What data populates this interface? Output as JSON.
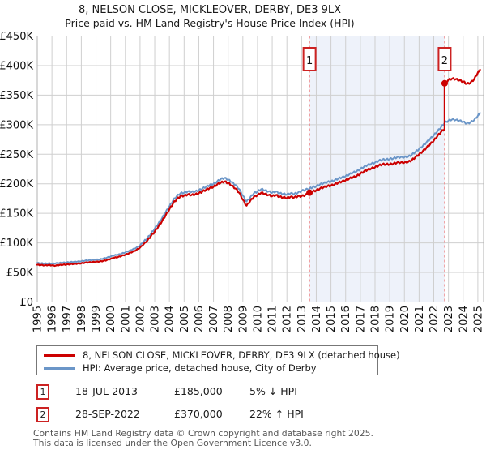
{
  "title": "8, NELSON CLOSE, MICKLEOVER, DERBY, DE3 9LX",
  "subtitle": "Price paid vs. HM Land Registry's House Price Index (HPI)",
  "chart_data": {
    "type": "line",
    "title": "8, NELSON CLOSE, MICKLEOVER, DERBY, DE3 9LX",
    "subtitle": "Price paid vs. HM Land Registry's House Price Index (HPI)",
    "grid": true,
    "legend_position": "bottom",
    "x_axis": {
      "min": 1995,
      "max": 2025,
      "tick_labels": [
        "1995",
        "1996",
        "1997",
        "1998",
        "1999",
        "2000",
        "2001",
        "2002",
        "2003",
        "2004",
        "2005",
        "2006",
        "2007",
        "2008",
        "2009",
        "2010",
        "2011",
        "2012",
        "2013",
        "2014",
        "2015",
        "2016",
        "2017",
        "2018",
        "2019",
        "2020",
        "2021",
        "2022",
        "2023",
        "2024",
        "2025"
      ]
    },
    "y_axis": {
      "min": 0,
      "max": 450000,
      "tick_step": 50000,
      "tick_labels": [
        "£0",
        "£50K",
        "£100K",
        "£150K",
        "£200K",
        "£250K",
        "£300K",
        "£350K",
        "£400K",
        "£450K"
      ]
    },
    "band_between_sales": {
      "from": 2013.54,
      "to": 2022.74,
      "color": "#eef2fa"
    },
    "sale_markers": [
      {
        "num": "1",
        "x": 2013.54,
        "value_k": 185
      },
      {
        "num": "2",
        "x": 2022.74,
        "value_k": 370
      }
    ],
    "series": [
      {
        "name": "HPI: Average price, detached house, City of Derby",
        "color": "#6b96c8",
        "width": 2,
        "points": [
          [
            1995.0,
            66
          ],
          [
            1995.25,
            65.5
          ],
          [
            1995.5,
            65
          ],
          [
            1995.75,
            65.5
          ],
          [
            1996.0,
            65
          ],
          [
            1996.25,
            65.5
          ],
          [
            1996.5,
            66
          ],
          [
            1996.75,
            66.5
          ],
          [
            1997.0,
            67
          ],
          [
            1997.25,
            67.5
          ],
          [
            1997.5,
            68
          ],
          [
            1997.75,
            68.5
          ],
          [
            1998.0,
            69
          ],
          [
            1998.25,
            70
          ],
          [
            1998.5,
            70.5
          ],
          [
            1998.75,
            71
          ],
          [
            1999.0,
            71.5
          ],
          [
            1999.25,
            72
          ],
          [
            1999.5,
            73.5
          ],
          [
            1999.75,
            75
          ],
          [
            2000.0,
            77
          ],
          [
            2000.25,
            79
          ],
          [
            2000.5,
            80
          ],
          [
            2000.75,
            82
          ],
          [
            2001.0,
            84
          ],
          [
            2001.25,
            86.5
          ],
          [
            2001.5,
            89
          ],
          [
            2001.75,
            92
          ],
          [
            2002.0,
            96
          ],
          [
            2002.25,
            102
          ],
          [
            2002.5,
            108
          ],
          [
            2002.75,
            116
          ],
          [
            2003.0,
            124
          ],
          [
            2003.25,
            133
          ],
          [
            2003.5,
            142
          ],
          [
            2003.75,
            152
          ],
          [
            2004.0,
            162
          ],
          [
            2004.25,
            172
          ],
          [
            2004.5,
            179
          ],
          [
            2004.75,
            184
          ],
          [
            2005.0,
            185
          ],
          [
            2005.25,
            187
          ],
          [
            2005.5,
            186
          ],
          [
            2005.75,
            187
          ],
          [
            2006.0,
            189
          ],
          [
            2006.25,
            192
          ],
          [
            2006.5,
            195
          ],
          [
            2006.75,
            198
          ],
          [
            2007.0,
            200
          ],
          [
            2007.25,
            204
          ],
          [
            2007.5,
            208
          ],
          [
            2007.75,
            210
          ],
          [
            2008.0,
            207
          ],
          [
            2008.25,
            203
          ],
          [
            2008.5,
            198
          ],
          [
            2008.75,
            191
          ],
          [
            2009.0,
            180
          ],
          [
            2009.25,
            170
          ],
          [
            2009.5,
            177
          ],
          [
            2009.75,
            184
          ],
          [
            2010.0,
            187
          ],
          [
            2010.25,
            191
          ],
          [
            2010.5,
            189
          ],
          [
            2010.75,
            187
          ],
          [
            2011.0,
            185
          ],
          [
            2011.25,
            187
          ],
          [
            2011.5,
            184
          ],
          [
            2011.75,
            183
          ],
          [
            2012.0,
            182
          ],
          [
            2012.25,
            184
          ],
          [
            2012.5,
            183
          ],
          [
            2012.75,
            185
          ],
          [
            2013.0,
            188
          ],
          [
            2013.25,
            190
          ],
          [
            2013.54,
            192
          ],
          [
            2013.75,
            194
          ],
          [
            2014.0,
            196
          ],
          [
            2014.25,
            199
          ],
          [
            2014.5,
            201
          ],
          [
            2014.75,
            203
          ],
          [
            2015.0,
            204
          ],
          [
            2015.25,
            206
          ],
          [
            2015.5,
            209
          ],
          [
            2015.75,
            211
          ],
          [
            2016.0,
            213
          ],
          [
            2016.25,
            216
          ],
          [
            2016.5,
            219
          ],
          [
            2016.75,
            221
          ],
          [
            2017.0,
            225
          ],
          [
            2017.25,
            229
          ],
          [
            2017.5,
            232
          ],
          [
            2017.75,
            234
          ],
          [
            2018.0,
            236
          ],
          [
            2018.25,
            239
          ],
          [
            2018.5,
            241
          ],
          [
            2018.75,
            241
          ],
          [
            2019.0,
            242
          ],
          [
            2019.25,
            243
          ],
          [
            2019.5,
            245
          ],
          [
            2019.75,
            245
          ],
          [
            2020.0,
            245
          ],
          [
            2020.25,
            246
          ],
          [
            2020.5,
            249
          ],
          [
            2020.75,
            254
          ],
          [
            2021.0,
            259
          ],
          [
            2021.25,
            264
          ],
          [
            2021.5,
            270
          ],
          [
            2021.75,
            276
          ],
          [
            2022.0,
            282
          ],
          [
            2022.25,
            289
          ],
          [
            2022.5,
            296
          ],
          [
            2022.74,
            303
          ],
          [
            2023.0,
            307
          ],
          [
            2023.25,
            309
          ],
          [
            2023.5,
            308
          ],
          [
            2023.75,
            307
          ],
          [
            2024.0,
            305
          ],
          [
            2024.25,
            302
          ],
          [
            2024.5,
            304
          ],
          [
            2024.75,
            308
          ],
          [
            2025.0,
            315
          ],
          [
            2025.15,
            320
          ]
        ]
      },
      {
        "name": "8, NELSON CLOSE, MICKLEOVER, DERBY, DE3 9LX (detached house)",
        "color": "#cc0000",
        "width": 2.2,
        "points": [
          [
            1995.0,
            63
          ],
          [
            1995.25,
            62.5
          ],
          [
            1995.5,
            62
          ],
          [
            1995.75,
            62.5
          ],
          [
            1996.0,
            62
          ],
          [
            1996.25,
            61.5
          ],
          [
            1996.5,
            62.5
          ],
          [
            1996.75,
            63
          ],
          [
            1997.0,
            63.5
          ],
          [
            1997.25,
            64
          ],
          [
            1997.5,
            64.5
          ],
          [
            1997.75,
            65
          ],
          [
            1998.0,
            65.5
          ],
          [
            1998.25,
            66.5
          ],
          [
            1998.5,
            67
          ],
          [
            1998.75,
            67.5
          ],
          [
            1999.0,
            68
          ],
          [
            1999.25,
            68.5
          ],
          [
            1999.5,
            69.5
          ],
          [
            1999.75,
            71
          ],
          [
            2000.0,
            73
          ],
          [
            2000.25,
            75
          ],
          [
            2000.5,
            76
          ],
          [
            2000.75,
            78
          ],
          [
            2001.0,
            80
          ],
          [
            2001.25,
            82.5
          ],
          [
            2001.5,
            85
          ],
          [
            2001.75,
            88
          ],
          [
            2002.0,
            92
          ],
          [
            2002.25,
            98
          ],
          [
            2002.5,
            104
          ],
          [
            2002.75,
            112
          ],
          [
            2003.0,
            119
          ],
          [
            2003.25,
            128
          ],
          [
            2003.5,
            137
          ],
          [
            2003.75,
            147
          ],
          [
            2004.0,
            157
          ],
          [
            2004.25,
            167
          ],
          [
            2004.5,
            174
          ],
          [
            2004.75,
            179
          ],
          [
            2005.0,
            180
          ],
          [
            2005.25,
            182
          ],
          [
            2005.5,
            181
          ],
          [
            2005.75,
            182
          ],
          [
            2006.0,
            184
          ],
          [
            2006.25,
            187
          ],
          [
            2006.5,
            190
          ],
          [
            2006.75,
            193
          ],
          [
            2007.0,
            195
          ],
          [
            2007.25,
            199
          ],
          [
            2007.5,
            202
          ],
          [
            2007.75,
            204
          ],
          [
            2008.0,
            201
          ],
          [
            2008.25,
            197
          ],
          [
            2008.5,
            192
          ],
          [
            2008.75,
            185
          ],
          [
            2009.0,
            173
          ],
          [
            2009.25,
            163
          ],
          [
            2009.5,
            171
          ],
          [
            2009.75,
            178
          ],
          [
            2010.0,
            181
          ],
          [
            2010.25,
            185
          ],
          [
            2010.5,
            183
          ],
          [
            2010.75,
            181
          ],
          [
            2011.0,
            179
          ],
          [
            2011.25,
            181
          ],
          [
            2011.5,
            178
          ],
          [
            2011.75,
            177
          ],
          [
            2012.0,
            176
          ],
          [
            2012.25,
            178
          ],
          [
            2012.5,
            177
          ],
          [
            2012.75,
            179
          ],
          [
            2013.0,
            179
          ],
          [
            2013.25,
            181
          ],
          [
            2013.54,
            185
          ],
          [
            2013.75,
            187
          ],
          [
            2014.0,
            189
          ],
          [
            2014.25,
            192
          ],
          [
            2014.5,
            194
          ],
          [
            2014.75,
            196
          ],
          [
            2015.0,
            197
          ],
          [
            2015.25,
            199
          ],
          [
            2015.5,
            202
          ],
          [
            2015.75,
            204
          ],
          [
            2016.0,
            206
          ],
          [
            2016.25,
            209
          ],
          [
            2016.5,
            211
          ],
          [
            2016.75,
            213
          ],
          [
            2017.0,
            217
          ],
          [
            2017.25,
            221
          ],
          [
            2017.5,
            224
          ],
          [
            2017.75,
            226
          ],
          [
            2018.0,
            228
          ],
          [
            2018.25,
            231
          ],
          [
            2018.5,
            233
          ],
          [
            2018.75,
            233
          ],
          [
            2019.0,
            233
          ],
          [
            2019.25,
            234
          ],
          [
            2019.5,
            236
          ],
          [
            2019.75,
            236
          ],
          [
            2020.0,
            236
          ],
          [
            2020.25,
            237
          ],
          [
            2020.5,
            240
          ],
          [
            2020.75,
            245
          ],
          [
            2021.0,
            250
          ],
          [
            2021.25,
            255
          ],
          [
            2021.5,
            261
          ],
          [
            2021.75,
            267
          ],
          [
            2022.0,
            273
          ],
          [
            2022.25,
            281
          ],
          [
            2022.5,
            288
          ],
          [
            2022.74,
            293
          ],
          [
            2022.74,
            370
          ],
          [
            2023.0,
            376
          ],
          [
            2023.25,
            378
          ],
          [
            2023.5,
            377
          ],
          [
            2023.75,
            375
          ],
          [
            2024.0,
            373
          ],
          [
            2024.25,
            369
          ],
          [
            2024.5,
            371
          ],
          [
            2024.75,
            377
          ],
          [
            2025.0,
            388
          ],
          [
            2025.15,
            393
          ]
        ]
      }
    ]
  },
  "legend": {
    "items": [
      {
        "label": "8, NELSON CLOSE, MICKLEOVER, DERBY, DE3 9LX (detached house)",
        "color": "#cc0000"
      },
      {
        "label": "HPI: Average price, detached house, City of Derby",
        "color": "#6b96c8"
      }
    ]
  },
  "annotations": [
    {
      "num": "1",
      "date": "18-JUL-2013",
      "price": "£185,000",
      "hpi": "5% ↓ HPI"
    },
    {
      "num": "2",
      "date": "28-SEP-2022",
      "price": "£370,000",
      "hpi": "22% ↑ HPI"
    }
  ],
  "footer": {
    "line1": "Contains HM Land Registry data © Crown copyright and database right 2025.",
    "line2": "This data is licensed under the Open Government Licence v3.0."
  },
  "colors": {
    "price_line": "#cc0000",
    "hpi_line": "#6b96c8",
    "sale_dashed": "#f08080",
    "band": "#eef2fa",
    "grid": "#cfcfcf",
    "marker_border": "#cc2222"
  }
}
